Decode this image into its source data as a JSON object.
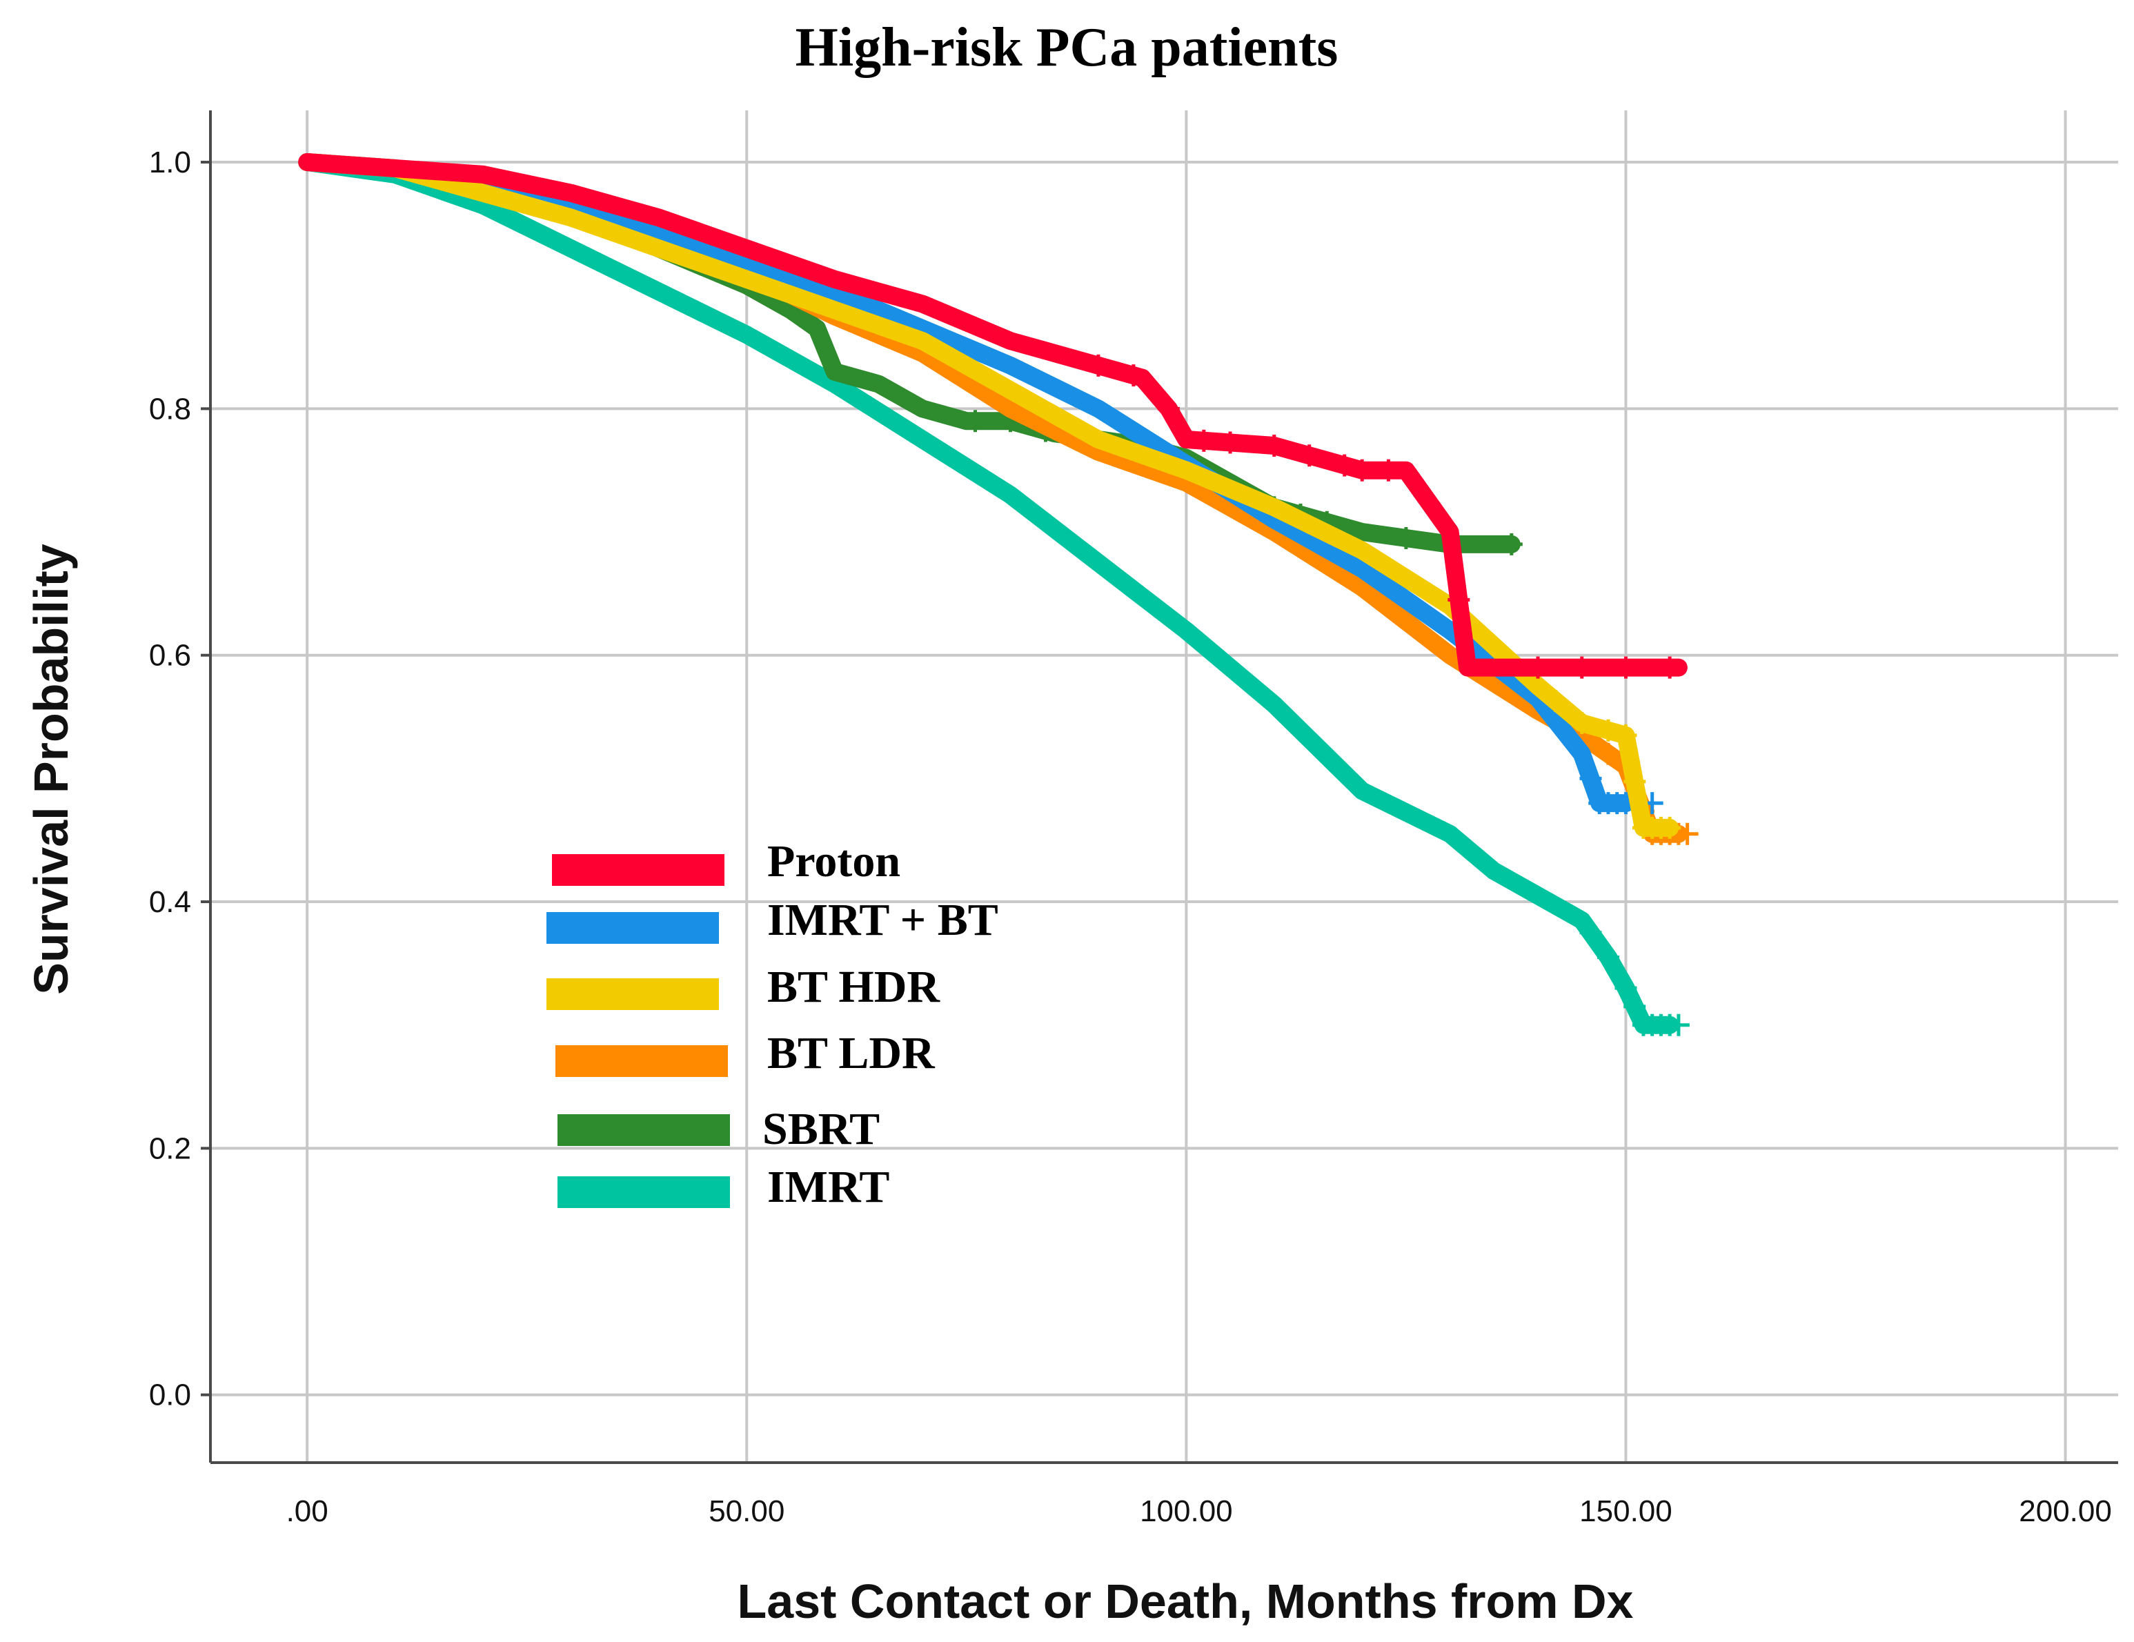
{
  "chart_data": {
    "type": "line",
    "subtype": "kaplan-meier",
    "title": "High-risk PCa patients",
    "xlabel": "Last Contact or Death, Months from Dx",
    "ylabel": "Survival Probability",
    "xlim": [
      -11,
      206
    ],
    "ylim": [
      -0.055,
      1.042
    ],
    "x_ticks": [
      0,
      50,
      100,
      150,
      200
    ],
    "x_tick_labels": [
      ".00",
      "50.00",
      "100.00",
      "150.00",
      "200.00"
    ],
    "y_ticks": [
      0,
      0.2,
      0.4,
      0.6,
      0.8,
      1.0
    ],
    "y_tick_labels": [
      "0.0",
      "0.2",
      "0.4",
      "0.6",
      "0.8",
      "1.0"
    ],
    "grid": true,
    "legend_position": "lower-left",
    "series": [
      {
        "name": "IMRT",
        "color": "#00c4a0",
        "x": [
          0,
          10,
          20,
          30,
          40,
          50,
          60,
          70,
          80,
          90,
          100,
          110,
          120,
          130,
          135,
          140,
          145,
          148,
          150,
          152,
          155
        ],
        "y": [
          1.0,
          0.99,
          0.965,
          0.93,
          0.895,
          0.86,
          0.82,
          0.775,
          0.73,
          0.675,
          0.62,
          0.56,
          0.49,
          0.455,
          0.425,
          0.405,
          0.385,
          0.355,
          0.33,
          0.3,
          0.3
        ],
        "censor_x": [
          146,
          148,
          150,
          151,
          152,
          153,
          154,
          155,
          156
        ]
      },
      {
        "name": "SBRT",
        "color": "#2e8b2e",
        "x": [
          0,
          10,
          20,
          30,
          40,
          50,
          55,
          58,
          60,
          65,
          70,
          75,
          80,
          85,
          90,
          95,
          100,
          105,
          110,
          115,
          120,
          125,
          130,
          137
        ],
        "y": [
          1.0,
          0.995,
          0.98,
          0.96,
          0.93,
          0.9,
          0.88,
          0.865,
          0.83,
          0.82,
          0.8,
          0.79,
          0.79,
          0.78,
          0.775,
          0.77,
          0.76,
          0.74,
          0.72,
          0.71,
          0.7,
          0.695,
          0.69,
          0.69
        ],
        "censor_x": [
          76,
          80,
          84,
          88,
          110,
          113,
          116,
          125,
          130,
          137
        ]
      },
      {
        "name": "BT LDR",
        "color": "#ff8a00",
        "x": [
          0,
          10,
          20,
          30,
          40,
          50,
          60,
          70,
          80,
          90,
          100,
          110,
          120,
          130,
          140,
          145,
          150,
          153,
          156
        ],
        "y": [
          1.0,
          0.995,
          0.98,
          0.96,
          0.935,
          0.91,
          0.875,
          0.845,
          0.8,
          0.765,
          0.74,
          0.7,
          0.655,
          0.6,
          0.555,
          0.535,
          0.51,
          0.455,
          0.455
        ],
        "censor_x": [
          148,
          150,
          152,
          153,
          154,
          155,
          156,
          157
        ]
      },
      {
        "name": "IMRT + BT",
        "color": "#1a8fe6",
        "x": [
          0,
          10,
          20,
          30,
          40,
          50,
          60,
          70,
          80,
          90,
          100,
          110,
          120,
          130,
          140,
          145,
          147,
          150
        ],
        "y": [
          1.0,
          0.995,
          0.985,
          0.965,
          0.945,
          0.92,
          0.895,
          0.865,
          0.835,
          0.8,
          0.755,
          0.71,
          0.67,
          0.62,
          0.565,
          0.52,
          0.48,
          0.48
        ],
        "censor_x": [
          146,
          147,
          148,
          149,
          150,
          151,
          152,
          153
        ]
      },
      {
        "name": "BT HDR",
        "color": "#f2cc00",
        "x": [
          0,
          10,
          20,
          30,
          40,
          50,
          60,
          70,
          80,
          90,
          100,
          110,
          120,
          130,
          140,
          145,
          150,
          152,
          155
        ],
        "y": [
          1.0,
          0.995,
          0.975,
          0.955,
          0.93,
          0.905,
          0.88,
          0.855,
          0.815,
          0.775,
          0.75,
          0.72,
          0.685,
          0.64,
          0.575,
          0.545,
          0.535,
          0.46,
          0.46
        ],
        "censor_x": [
          142,
          145,
          148,
          150,
          151,
          152,
          153,
          154,
          155
        ]
      },
      {
        "name": "Proton",
        "color": "#ff0033",
        "x": [
          0,
          10,
          20,
          30,
          40,
          50,
          60,
          70,
          80,
          90,
          95,
          98,
          100,
          110,
          120,
          125,
          130,
          132,
          140,
          150,
          156
        ],
        "y": [
          1.0,
          0.995,
          0.99,
          0.975,
          0.955,
          0.93,
          0.905,
          0.885,
          0.855,
          0.835,
          0.825,
          0.8,
          0.775,
          0.77,
          0.75,
          0.75,
          0.7,
          0.59,
          0.59,
          0.59,
          0.59
        ],
        "censor_x": [
          90,
          94,
          98,
          102,
          105,
          110,
          114,
          118,
          120,
          123,
          131,
          140,
          145,
          150,
          155
        ]
      }
    ],
    "legend_order": [
      "Proton",
      "IMRT + BT",
      "BT HDR",
      "BT LDR",
      "SBRT",
      "IMRT"
    ]
  },
  "legend": {
    "items": [
      {
        "label": "Proton",
        "color": "#ff0033"
      },
      {
        "label": "IMRT + BT",
        "color": "#1a8fe6"
      },
      {
        "label": "BT HDR",
        "color": "#f2cc00"
      },
      {
        "label": "BT LDR",
        "color": "#ff8a00"
      },
      {
        "label": "SBRT",
        "color": "#2e8b2e"
      },
      {
        "label": "IMRT",
        "color": "#00c4a0"
      }
    ]
  }
}
